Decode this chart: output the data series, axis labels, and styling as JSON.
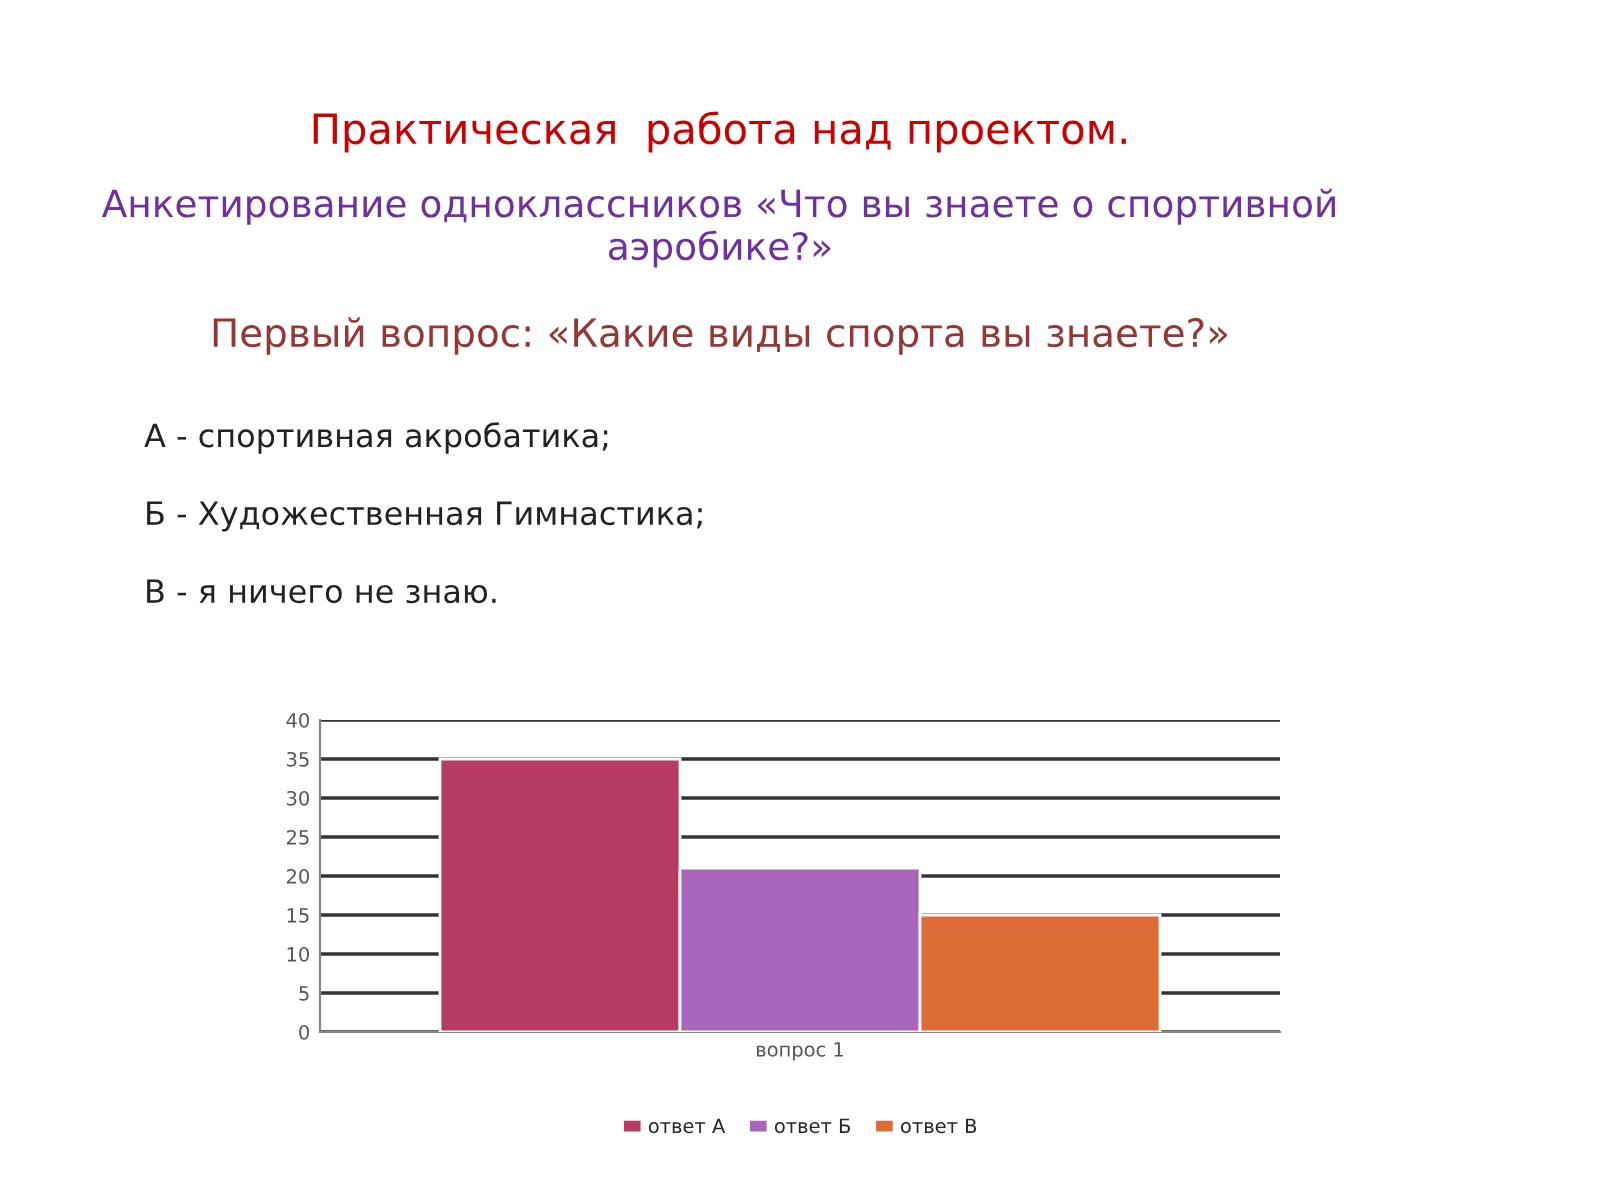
{
  "chart_data": {
    "type": "bar",
    "title": "Практическая  работа над проектом.",
    "subtitle": "Анкетирование одноклассников «Что вы знаете о спортивной аэробике?»",
    "annotations": [
      "Первый вопрос: «Какие виды спорта вы знаете?»",
      "А - спортивная акробатика;",
      "Б - Художественная Гимнастика;",
      "В - я ничего не знаю."
    ],
    "categories": [
      "вопрос 1"
    ],
    "series": [
      {
        "name": "ответ А",
        "color": "#b83b63",
        "values": [
          35
        ]
      },
      {
        "name": "ответ Б",
        "color": "#a866bb",
        "values": [
          21
        ]
      },
      {
        "name": "ответ В",
        "color": "#dd6b35",
        "values": [
          15
        ]
      }
    ],
    "ylim": [
      0,
      40
    ],
    "yticks": [
      0,
      5,
      10,
      15,
      20,
      25,
      30,
      35,
      40
    ],
    "grid": "y",
    "legend": "bottom"
  }
}
